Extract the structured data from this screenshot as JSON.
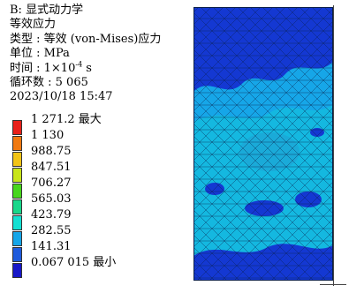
{
  "header": {
    "analysis": "B: 显式动力学",
    "result_name": "等效应力",
    "type_label": "类型 : 等效 (von-Mises)应力",
    "unit_label": "单位 : MPa",
    "time_prefix": "时间 : 1×10",
    "time_exp": "-4",
    "time_unit": " s",
    "cycles_label": "循环数 : 5 065",
    "datetime": "2023/10/18  15:47"
  },
  "legend": {
    "items": [
      {
        "value": "1 271.2  最大",
        "color": "#e8201a"
      },
      {
        "value": "1 130",
        "color": "#f07a12"
      },
      {
        "value": "988.75",
        "color": "#f2c416"
      },
      {
        "value": "847.51",
        "color": "#c8e51a"
      },
      {
        "value": "706.27",
        "color": "#47d61c"
      },
      {
        "value": "565.03",
        "color": "#18d78a"
      },
      {
        "value": "423.79",
        "color": "#14e0d2"
      },
      {
        "value": "282.55",
        "color": "#16a6e8"
      },
      {
        "value": "141.31",
        "color": "#1f5bdc"
      },
      {
        "value": "0.067 015  最小",
        "color": "#1818c8"
      }
    ]
  },
  "colors": {
    "low_stress": "#1438d2",
    "mid_stress": "#14b8e0",
    "high_stress": "#1aaad8",
    "mesh_lines": "#0a1f4a"
  }
}
